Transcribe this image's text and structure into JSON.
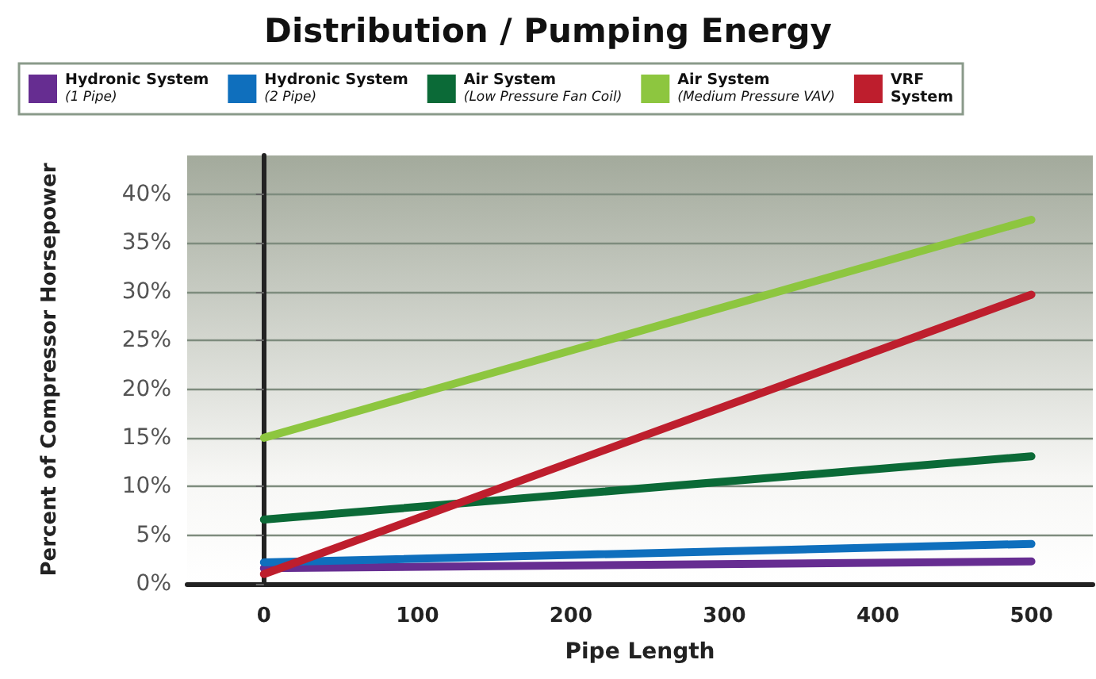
{
  "chart_data": {
    "type": "line",
    "title": "Distribution / Pumping Energy",
    "xlabel": "Pipe Length",
    "ylabel": "Percent of Compressor Horsepower",
    "x": [
      0,
      500
    ],
    "series": [
      {
        "name": "Hydronic System\n(1 Pipe)",
        "color": "#662d91",
        "values": [
          1.6,
          2.3
        ]
      },
      {
        "name": "Hydronic System\n(2 Pipe)",
        "color": "#0f6fbd",
        "values": [
          2.2,
          4.1
        ]
      },
      {
        "name": "Air System\n(Low Pressure Fan Coil)",
        "color": "#0b6a37",
        "values": [
          6.6,
          13.1
        ]
      },
      {
        "name": "Air System\n(Medium Pressure VAV)",
        "color": "#8dc63f",
        "values": [
          15,
          37.4
        ]
      },
      {
        "name": "VRF\nSystem",
        "color": "#be1e2d",
        "values": [
          1,
          29.7
        ]
      }
    ],
    "xlim": [
      -50,
      540
    ],
    "xticks": [
      0,
      100,
      200,
      300,
      400,
      500
    ],
    "ylim": [
      0,
      44
    ],
    "yticks": [
      {
        "value": 0,
        "label": "0%"
      },
      {
        "value": 5,
        "label": "5%"
      },
      {
        "value": 10,
        "label": "10%"
      },
      {
        "value": 15,
        "label": "15%"
      },
      {
        "value": 20,
        "label": "20%"
      },
      {
        "value": 25,
        "label": "25%"
      },
      {
        "value": 30,
        "label": "30%"
      },
      {
        "value": 35,
        "label": "35%"
      },
      {
        "value": 40,
        "label": "40%"
      }
    ],
    "grid": "y",
    "legend": "top",
    "marker": "none",
    "line_style": "solid"
  }
}
